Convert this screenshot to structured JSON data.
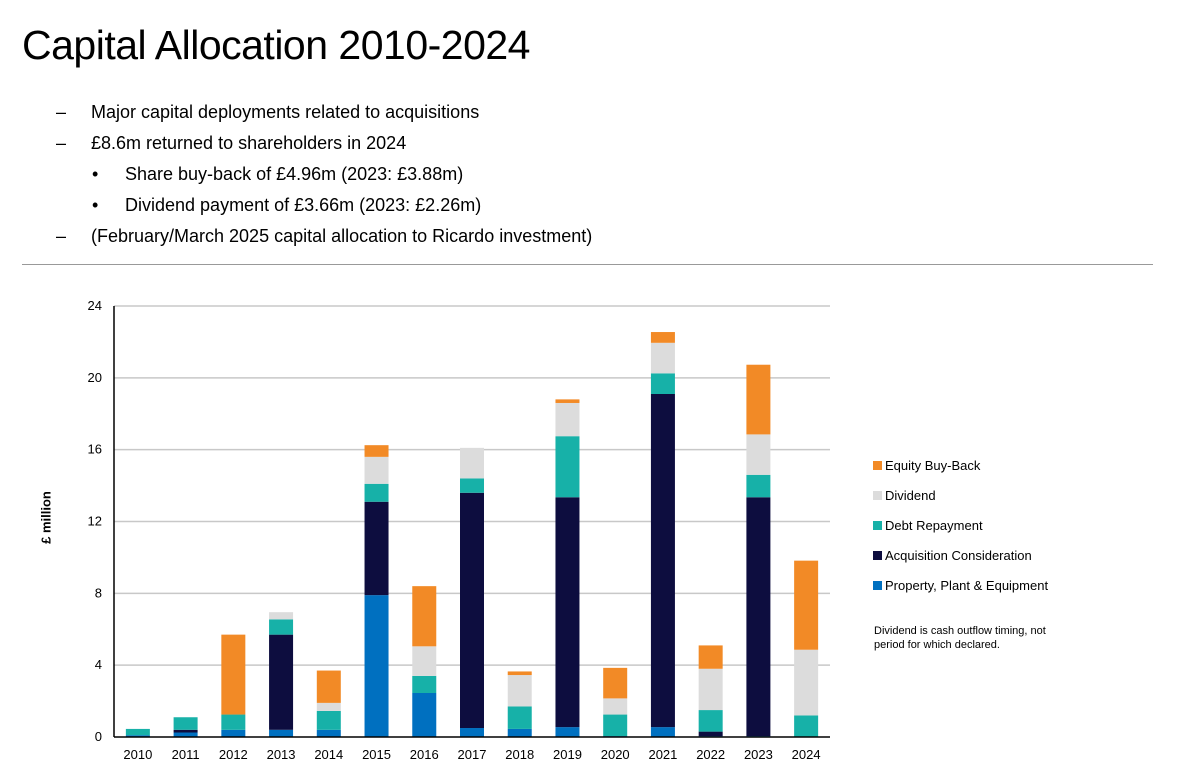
{
  "title": "Capital Allocation 2010-2024",
  "bullets": [
    {
      "level": 1,
      "marker": "–",
      "text": "Major capital deployments related to acquisitions"
    },
    {
      "level": 1,
      "marker": "–",
      "text": "£8.6m returned to shareholders in 2024"
    },
    {
      "level": 2,
      "marker": "•",
      "text": "Share buy-back of £4.96m (2023: £3.88m)"
    },
    {
      "level": 2,
      "marker": "•",
      "text": "Dividend payment of £3.66m (2023: £2.26m)"
    },
    {
      "level": 1,
      "marker": "–",
      "text": "(February/March 2025 capital allocation to Ricardo investment)"
    }
  ],
  "note": "Dividend is cash outflow timing, not period for which declared.",
  "chart_data": {
    "type": "bar",
    "stacked": true,
    "title": "",
    "xlabel": "",
    "ylabel": "£ million",
    "ylim": [
      0,
      24
    ],
    "yticks": [
      0,
      4,
      8,
      12,
      16,
      20,
      24
    ],
    "grid": true,
    "legend_position": "right",
    "categories": [
      "2010",
      "2011",
      "2012",
      "2013",
      "2014",
      "2015",
      "2016",
      "2017",
      "2018",
      "2019",
      "2020",
      "2021",
      "2022",
      "2023",
      "2024"
    ],
    "series": [
      {
        "name": "Property, Plant & Equipment",
        "color": "#0070c0",
        "values": [
          0.1,
          0.25,
          0.4,
          0.4,
          0.4,
          7.9,
          2.45,
          0.5,
          0.45,
          0.55,
          0.05,
          0.55,
          0.05,
          0.05,
          0
        ]
      },
      {
        "name": "Acquisition Consideration",
        "color": "#0d0d3f",
        "values": [
          0,
          0.15,
          0,
          5.3,
          0,
          5.2,
          0,
          13.1,
          0,
          12.8,
          0,
          18.55,
          0.25,
          13.3,
          0
        ]
      },
      {
        "name": "Debt Repayment",
        "color": "#17b1a8",
        "values": [
          0.35,
          0.7,
          0.85,
          0.85,
          1.05,
          1.0,
          0.95,
          0.8,
          1.25,
          3.4,
          1.2,
          1.15,
          1.2,
          1.25,
          1.2
        ]
      },
      {
        "name": "Dividend",
        "color": "#dcdcdc",
        "values": [
          0,
          0,
          0,
          0.4,
          0.45,
          1.5,
          1.65,
          1.7,
          1.75,
          1.85,
          0.9,
          1.7,
          2.3,
          2.25,
          3.66
        ]
      },
      {
        "name": "Equity Buy-Back",
        "color": "#f28a26",
        "values": [
          0,
          0,
          4.45,
          0,
          1.8,
          0.65,
          3.35,
          0,
          0.2,
          0.2,
          1.7,
          0.6,
          1.3,
          3.88,
          4.96
        ]
      }
    ]
  }
}
